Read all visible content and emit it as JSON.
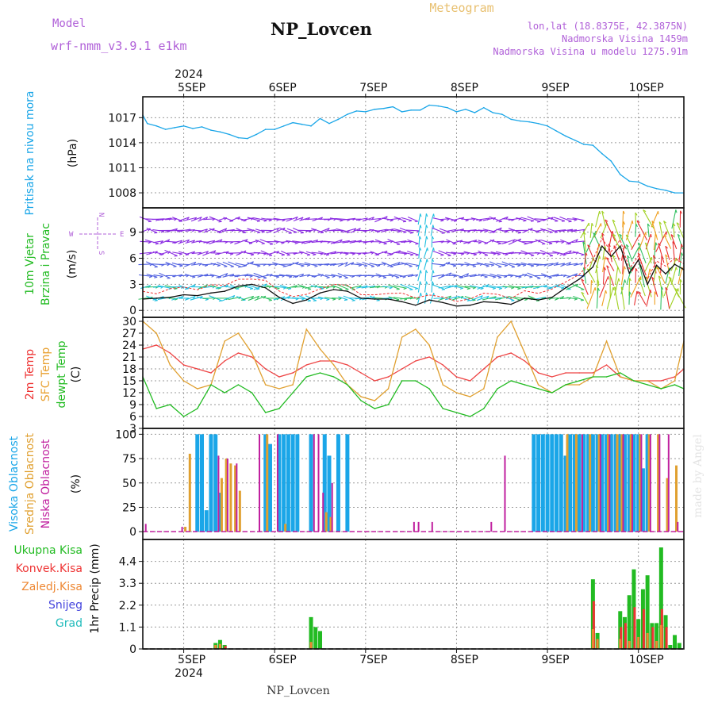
{
  "header": {
    "model_label": "Model",
    "model_name": "wrf-nmm_v3.9.1  e1km",
    "station": "NP_Lovcen",
    "product": "Meteogram",
    "coords": "lon,lat (18.8375E, 42.3875N)",
    "elevation": "Nadmorska Visina 1459m",
    "model_elevation": "Nadmorska Visina u modelu 1275.91m",
    "footer_station": "NP_Lovcen",
    "watermark": "made by Angel"
  },
  "time_axis": {
    "year_label": "2024",
    "days": [
      "5SEP",
      "6SEP",
      "7SEP",
      "8SEP",
      "9SEP",
      "10SEP"
    ],
    "range_days": [
      4.55,
      10.5
    ]
  },
  "legend": {
    "compass": {
      "n": "N",
      "w": "W",
      "e": "E",
      "s": "S"
    },
    "precip_types": [
      {
        "label": "Ukupna Kisa",
        "color": "#22bb22"
      },
      {
        "label": "Konvek.Kisa",
        "color": "#ee3333"
      },
      {
        "label": "Zaledj.Kisa",
        "color": "#ee8833"
      },
      {
        "label": "Snijeg",
        "color": "#4444dd"
      },
      {
        "label": "Grad",
        "color": "#22bbbb"
      }
    ]
  },
  "panels": {
    "pressure": {
      "title": "Pritisak na nivou mora",
      "unit": "(hPa)",
      "color": "#1aa6e8",
      "ticks": [
        "1017",
        "1014",
        "1011",
        "1008"
      ]
    },
    "wind": {
      "title_1": "10m Vjetar",
      "title_2": "Brzina i Pravac",
      "unit": "(m/s)",
      "ticks": [
        "9",
        "6",
        "3",
        "0"
      ]
    },
    "temp": {
      "title_1": "2m Temp",
      "title_2": "SFC Temp",
      "title_3": "dewpt Temp",
      "unit": "(C)",
      "ticks": [
        "30",
        "27",
        "24",
        "21",
        "18",
        "15",
        "12",
        "9",
        "6",
        "3"
      ]
    },
    "cloud": {
      "title_1": "Visoka Oblacnost",
      "title_2": "Srednja Oblacnost",
      "title_3": "Niska Oblacnost",
      "unit": "(%)",
      "ticks": [
        "100",
        "75",
        "50",
        "25",
        "0"
      ]
    },
    "precip": {
      "title": "1hr Precip (mm)",
      "ticks": [
        "4.4",
        "3.3",
        "2.2",
        "1.1",
        "0"
      ]
    }
  },
  "chart_data": [
    {
      "type": "line",
      "title": "Pritisak na nivou mora",
      "ylabel": "(hPa)",
      "ylim": [
        1006.2,
        1019.5
      ],
      "series": [
        {
          "name": "Pritisak na nivou mora",
          "x": [
            4.55,
            4.6,
            4.7,
            4.8,
            4.9,
            5.0,
            5.1,
            5.2,
            5.3,
            5.4,
            5.5,
            5.6,
            5.7,
            5.8,
            5.9,
            6.0,
            6.1,
            6.2,
            6.3,
            6.4,
            6.5,
            6.6,
            6.7,
            6.8,
            6.9,
            7.0,
            7.1,
            7.2,
            7.3,
            7.4,
            7.5,
            7.6,
            7.7,
            7.8,
            7.9,
            8.0,
            8.1,
            8.2,
            8.3,
            8.4,
            8.5,
            8.6,
            8.7,
            8.8,
            8.9,
            9.0,
            9.1,
            9.2,
            9.3,
            9.4,
            9.5,
            9.6,
            9.7,
            9.8,
            9.9,
            10.0,
            10.1,
            10.2,
            10.3,
            10.4,
            10.5
          ],
          "values": [
            1017.3,
            1016.3,
            1016.0,
            1015.6,
            1015.8,
            1016.0,
            1015.7,
            1015.9,
            1015.5,
            1015.3,
            1015.0,
            1014.6,
            1014.5,
            1015.0,
            1015.6,
            1015.6,
            1016.0,
            1016.4,
            1016.2,
            1016.0,
            1016.9,
            1016.3,
            1016.8,
            1017.4,
            1017.8,
            1017.7,
            1018.0,
            1018.1,
            1018.3,
            1017.7,
            1017.9,
            1017.9,
            1018.5,
            1018.4,
            1018.2,
            1017.7,
            1018.0,
            1017.6,
            1018.2,
            1017.6,
            1017.4,
            1016.8,
            1016.6,
            1016.5,
            1016.3,
            1016.0,
            1015.4,
            1014.8,
            1014.3,
            1013.8,
            1013.7,
            1012.7,
            1011.8,
            1010.2,
            1009.4,
            1009.3,
            1008.8,
            1008.5,
            1008.3,
            1008.0,
            1008.0
          ]
        }
      ]
    },
    {
      "type": "line",
      "title": "10m Vjetar Brzina i Pravac",
      "ylabel": "(m/s)",
      "ylim": [
        -0.8,
        11.8
      ],
      "series": [
        {
          "name": "wind speed",
          "x": [
            4.55,
            4.7,
            4.85,
            5.0,
            5.15,
            5.3,
            5.45,
            5.6,
            5.75,
            5.9,
            6.05,
            6.2,
            6.35,
            6.5,
            6.65,
            6.8,
            6.95,
            7.1,
            7.25,
            7.4,
            7.55,
            7.7,
            7.85,
            8.0,
            8.15,
            8.3,
            8.45,
            8.6,
            8.75,
            8.9,
            9.05,
            9.2,
            9.35,
            9.5,
            9.6,
            9.7,
            9.8,
            9.9,
            10.0,
            10.1,
            10.2,
            10.3,
            10.4,
            10.5
          ],
          "values": [
            1.3,
            1.4,
            1.5,
            1.8,
            1.7,
            2.0,
            2.2,
            2.8,
            3.0,
            2.6,
            1.5,
            0.8,
            1.2,
            2.0,
            2.4,
            2.2,
            1.4,
            1.3,
            1.3,
            1.0,
            0.6,
            1.2,
            0.9,
            0.5,
            0.6,
            1.0,
            0.9,
            0.7,
            1.4,
            1.2,
            1.5,
            2.6,
            3.6,
            5.0,
            7.4,
            6.2,
            7.4,
            4.3,
            5.8,
            3.0,
            5.2,
            4.2,
            5.3,
            4.7
          ]
        }
      ]
    },
    {
      "type": "line",
      "title": "2m Temp / SFC Temp / dewpt Temp",
      "ylabel": "(C)",
      "ylim": [
        3,
        31
      ],
      "series": [
        {
          "name": "2m Temp",
          "x": [
            4.55,
            4.7,
            4.85,
            5.0,
            5.15,
            5.3,
            5.45,
            5.6,
            5.75,
            5.9,
            6.05,
            6.2,
            6.35,
            6.5,
            6.65,
            6.8,
            6.95,
            7.1,
            7.25,
            7.4,
            7.55,
            7.7,
            7.85,
            8.0,
            8.15,
            8.3,
            8.45,
            8.6,
            8.75,
            8.9,
            9.05,
            9.2,
            9.35,
            9.5,
            9.65,
            9.8,
            9.95,
            10.1,
            10.25,
            10.4,
            10.5
          ],
          "values": [
            23,
            24,
            22,
            19,
            18,
            17,
            20,
            22,
            21,
            18,
            16,
            17,
            19,
            20,
            20,
            19,
            17,
            15,
            16,
            18,
            20,
            21,
            19,
            16,
            15,
            18,
            21,
            22,
            20,
            17,
            16,
            17,
            17,
            17,
            19,
            16,
            15,
            15,
            15,
            16,
            18
          ]
        },
        {
          "name": "SFC Temp",
          "x": [
            4.55,
            4.7,
            4.85,
            5.0,
            5.15,
            5.3,
            5.45,
            5.6,
            5.75,
            5.9,
            6.05,
            6.2,
            6.35,
            6.5,
            6.65,
            6.8,
            6.95,
            7.1,
            7.25,
            7.4,
            7.55,
            7.7,
            7.85,
            8.0,
            8.15,
            8.3,
            8.45,
            8.6,
            8.75,
            8.9,
            9.05,
            9.2,
            9.35,
            9.5,
            9.65,
            9.8,
            9.95,
            10.1,
            10.25,
            10.4,
            10.5
          ],
          "values": [
            30,
            27,
            19,
            15,
            13,
            14,
            25,
            27,
            22,
            14,
            13,
            14,
            28,
            23,
            19,
            14,
            11,
            10,
            13,
            26,
            28,
            24,
            14,
            12,
            11,
            13,
            26,
            30,
            22,
            14,
            12,
            14,
            14,
            16,
            25,
            16,
            15,
            15,
            13,
            15,
            25
          ]
        },
        {
          "name": "dewpt Temp",
          "x": [
            4.55,
            4.7,
            4.85,
            5.0,
            5.15,
            5.3,
            5.45,
            5.6,
            5.75,
            5.9,
            6.05,
            6.2,
            6.35,
            6.5,
            6.65,
            6.8,
            6.95,
            7.1,
            7.25,
            7.4,
            7.55,
            7.7,
            7.85,
            8.0,
            8.15,
            8.3,
            8.45,
            8.6,
            8.75,
            8.9,
            9.05,
            9.2,
            9.35,
            9.5,
            9.65,
            9.8,
            9.95,
            10.1,
            10.25,
            10.4,
            10.5
          ],
          "values": [
            16,
            8,
            9,
            6,
            8,
            14,
            12,
            14,
            12,
            7,
            8,
            12,
            16,
            17,
            16,
            14,
            10,
            8,
            9,
            15,
            15,
            13,
            8,
            7,
            6,
            8,
            13,
            15,
            14,
            13,
            12,
            14,
            15,
            16,
            16,
            17,
            15,
            14,
            13,
            14,
            13
          ]
        }
      ]
    },
    {
      "type": "bar",
      "title": "Visoka / Srednja / Niska Oblacnost",
      "ylabel": "(%)",
      "ylim": [
        0,
        100
      ],
      "series": [
        {
          "name": "Visoka Oblacnost",
          "color": "#1aa6e8",
          "x": [
            5.15,
            5.2,
            5.25,
            5.3,
            5.35,
            5.4,
            5.9,
            5.95,
            6.05,
            6.1,
            6.15,
            6.2,
            6.25,
            6.4,
            6.55,
            6.6,
            6.7,
            6.8,
            8.85,
            8.9,
            8.95,
            9.0,
            9.05,
            9.1,
            9.15,
            9.2,
            9.25,
            9.3,
            9.35,
            9.4,
            9.45,
            9.5,
            9.55,
            9.6,
            9.65,
            9.7,
            9.75,
            9.8,
            9.85,
            9.9,
            9.95,
            10.0,
            10.05,
            10.1
          ],
          "values": [
            100,
            100,
            22,
            100,
            100,
            40,
            100,
            90,
            100,
            100,
            100,
            100,
            100,
            100,
            100,
            78,
            100,
            100,
            100,
            100,
            100,
            100,
            100,
            100,
            100,
            78,
            100,
            100,
            100,
            100,
            100,
            100,
            100,
            100,
            100,
            100,
            100,
            100,
            100,
            100,
            100,
            100,
            65,
            100
          ]
        },
        {
          "name": "Srednja Oblacnost",
          "color": "#e0a030",
          "x": [
            5.0,
            5.05,
            5.4,
            5.45,
            5.5,
            5.55,
            5.6,
            5.9,
            6.1,
            6.55,
            6.6,
            9.2,
            9.3,
            9.45,
            9.55,
            9.65,
            9.75,
            9.8,
            9.9,
            10.0,
            10.1,
            10.2,
            10.3,
            10.4
          ],
          "values": [
            5,
            80,
            55,
            75,
            70,
            68,
            42,
            100,
            8,
            20,
            15,
            100,
            100,
            100,
            100,
            100,
            100,
            100,
            100,
            100,
            100,
            100,
            55,
            68
          ]
        },
        {
          "name": "Niska Oblacnost",
          "color": "#c0209f",
          "x": [
            4.6,
            5.0,
            5.4,
            5.5,
            5.6,
            5.85,
            6.05,
            6.45,
            6.5,
            6.55,
            6.65,
            7.55,
            7.6,
            7.75,
            8.4,
            8.55,
            9.4,
            9.6,
            9.7,
            9.85,
            9.95,
            10.05,
            10.15,
            10.25,
            10.35,
            10.45
          ],
          "values": [
            8,
            5,
            78,
            75,
            70,
            100,
            100,
            100,
            100,
            40,
            50,
            10,
            10,
            10,
            10,
            78,
            100,
            100,
            100,
            100,
            100,
            100,
            100,
            100,
            100,
            10
          ]
        }
      ]
    },
    {
      "type": "bar",
      "title": "1hr Precip (mm)",
      "ylabel": "(mm)",
      "ylim": [
        0,
        5.5
      ],
      "series": [
        {
          "name": "Ukupna Kisa",
          "color": "#22bb22",
          "x": [
            5.35,
            5.4,
            5.45,
            6.4,
            6.45,
            6.5,
            9.5,
            9.55,
            9.8,
            9.85,
            9.9,
            9.95,
            10.0,
            10.05,
            10.1,
            10.15,
            10.2,
            10.25,
            10.3,
            10.35,
            10.4,
            10.45
          ],
          "values": [
            0.3,
            0.45,
            0.2,
            1.6,
            1.1,
            0.9,
            3.5,
            0.8,
            1.9,
            1.6,
            2.7,
            4.0,
            1.5,
            3.0,
            3.7,
            1.3,
            1.3,
            5.1,
            1.7,
            0.2,
            0.7,
            0.3
          ]
        },
        {
          "name": "Konvek.Kisa",
          "color": "#ee3333",
          "x": [
            5.45,
            9.5,
            9.8,
            9.85,
            9.95,
            10.05,
            10.15,
            10.25,
            10.3
          ],
          "values": [
            0.15,
            2.4,
            1.1,
            1.3,
            2.1,
            2.0,
            1.1,
            2.0,
            1.1
          ]
        },
        {
          "name": "Zaledj.Kisa",
          "color": "#ee8833",
          "x": [
            5.35,
            5.4,
            6.4,
            9.5,
            9.55,
            9.8,
            9.9,
            10.0,
            10.1,
            10.2,
            10.25
          ],
          "values": [
            0.2,
            0.25,
            0.35,
            1.0,
            0.5,
            0.5,
            0.4,
            0.6,
            0.8,
            0.4,
            1.2
          ]
        },
        {
          "name": "Snijeg",
          "color": "#4444dd",
          "x": [],
          "values": []
        },
        {
          "name": "Grad",
          "color": "#22bbbb",
          "x": [],
          "values": []
        }
      ]
    }
  ],
  "wind_colors": [
    "#8a2be2",
    "#5060e0",
    "#20c0e0",
    "#30c060",
    "#a0d020",
    "#f0a020",
    "#e83030"
  ]
}
